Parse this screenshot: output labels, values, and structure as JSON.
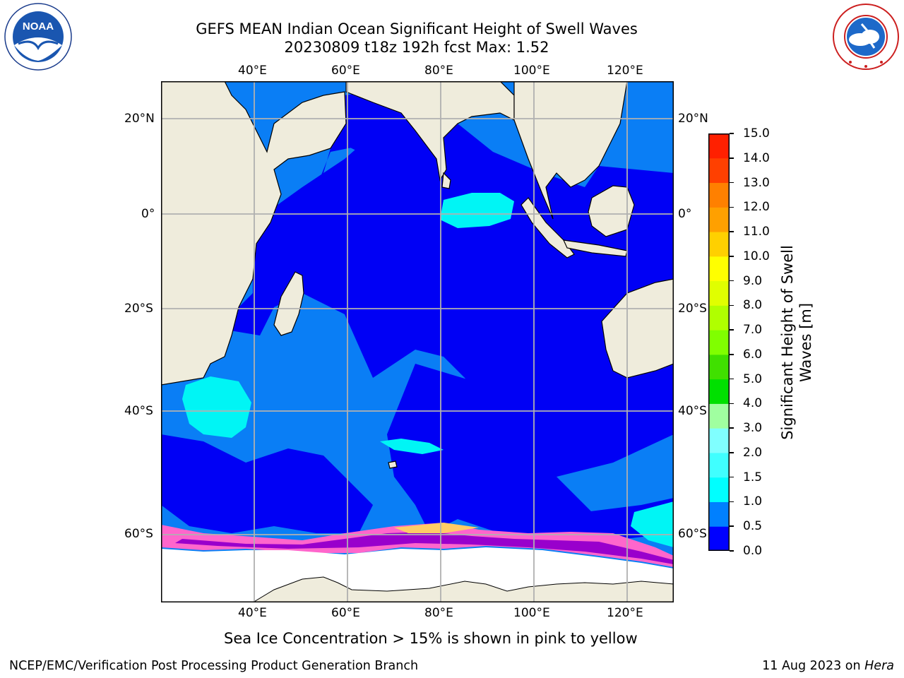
{
  "header": {
    "title": "GEFS MEAN Indian Ocean Significant Height of Swell Waves",
    "subtitle": "20230809 t18z 192h fcst   Max: 1.52"
  },
  "logos": {
    "noaa": {
      "text": "NOAA",
      "ring_text": "NATIONAL OCEANIC AND ATMOSPHERIC ADMINISTRATION · U.S. DEPARTMENT OF COMMERCE"
    },
    "nws": {
      "ring_text": "NATIONAL WEATHER SERVICE"
    }
  },
  "map": {
    "lon_labels": [
      "40°E",
      "60°E",
      "80°E",
      "100°E",
      "120°E"
    ],
    "lat_labels": [
      "20°N",
      "0°",
      "20°S",
      "40°S",
      "60°S"
    ],
    "colors": {
      "land": "#efecdc",
      "ice": "#ffffff",
      "grid": "#b0b0b0",
      "ocean_0_05": "#0000f5",
      "ocean_05_1": "#0a7ef5",
      "ocean_1_15": "#00f5f5"
    }
  },
  "colorbar": {
    "label_line1": "Significant Height of Swell",
    "label_line2": "Waves [m]",
    "ticks": [
      "0.0",
      "0.5",
      "1.0",
      "1.5",
      "2.0",
      "3.0",
      "4.0",
      "5.0",
      "6.0",
      "7.0",
      "8.0",
      "9.0",
      "10.0",
      "11.0",
      "12.0",
      "13.0",
      "14.0",
      "15.0"
    ],
    "colors": [
      "#0000ff",
      "#0080ff",
      "#00ffff",
      "#40ffff",
      "#80ffff",
      "#a0ffa0",
      "#00e000",
      "#40e000",
      "#80ff00",
      "#b0ff00",
      "#e0ff00",
      "#ffff00",
      "#ffd000",
      "#ffa000",
      "#ff8000",
      "#ff4000",
      "#ff2000",
      "#ff0000"
    ]
  },
  "notice": "Sea Ice Concentration > 15% is shown in pink to yellow",
  "footer": {
    "left": "NCEP/EMC/Verification Post Processing Product Generation Branch",
    "date": "11 Aug 2023 on ",
    "machine": "Hera"
  }
}
